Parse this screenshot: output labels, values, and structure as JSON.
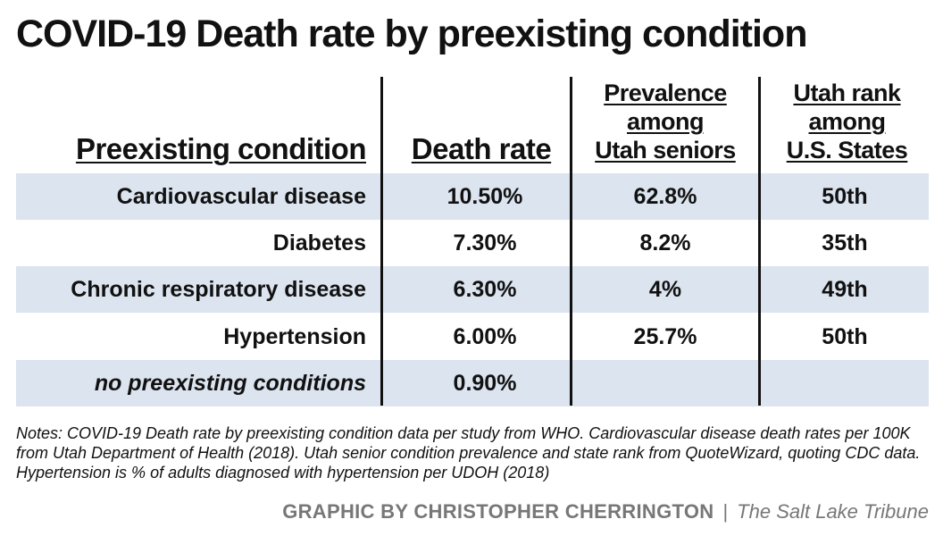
{
  "title": "COVID-19 Death rate by preexisting condition",
  "chart_data": {
    "type": "table",
    "columns": [
      {
        "label": "Preexisting condition",
        "lines": [
          "Preexisting condition"
        ]
      },
      {
        "label": "Death rate",
        "lines": [
          "Death rate"
        ]
      },
      {
        "label": "Prevalence among Utah seniors",
        "lines": [
          "Prevalence",
          "among",
          "Utah seniors"
        ]
      },
      {
        "label": "Utah rank among U.S. States",
        "lines": [
          "Utah rank",
          "among",
          "U.S. States"
        ]
      }
    ],
    "rows": [
      {
        "condition": "Cardiovascular disease",
        "death_rate": "10.50%",
        "prevalence": "62.8%",
        "rank": "50th",
        "shaded": true,
        "italic": false
      },
      {
        "condition": "Diabetes",
        "death_rate": "7.30%",
        "prevalence": "8.2%",
        "rank": "35th",
        "shaded": false,
        "italic": false
      },
      {
        "condition": "Chronic respiratory disease",
        "death_rate": "6.30%",
        "prevalence": "4%",
        "rank": "49th",
        "shaded": true,
        "italic": false
      },
      {
        "condition": "Hypertension",
        "death_rate": "6.00%",
        "prevalence": "25.7%",
        "rank": "50th",
        "shaded": false,
        "italic": false
      },
      {
        "condition": "no preexisting conditions",
        "death_rate": "0.90%",
        "prevalence": "",
        "rank": "",
        "shaded": true,
        "italic": true
      }
    ],
    "band_color": "#dbe4ef"
  },
  "notes": "Notes: COVID-19 Death rate by preexisting condition data per study from WHO. Cardiovascular disease death rates per 100K from Utah Department of Health (2018). Utah senior condition prevalence and state rank from QuoteWizard, quoting CDC data. Hypertension is % of adults diagnosed with hypertension per UDOH (2018)",
  "credit": {
    "byline": "GRAPHIC BY CHRISTOPHER CHERRINGTON",
    "separator": "|",
    "publication": "The Salt Lake Tribune"
  }
}
